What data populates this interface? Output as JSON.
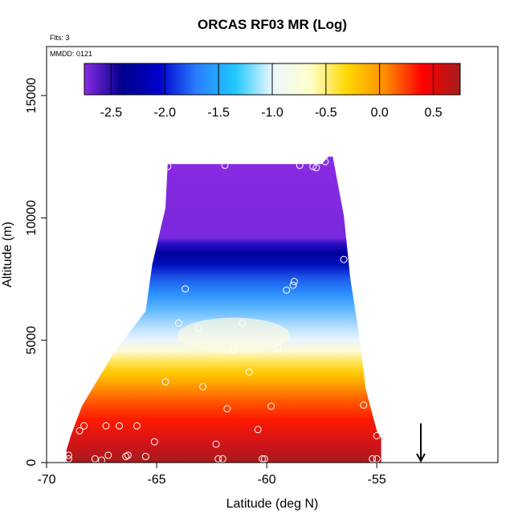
{
  "chart_data": {
    "type": "heatmap",
    "title": "ORCAS RF03 MR (Log)",
    "annotations": {
      "flights": "Flts: 3",
      "date": "MMDD: 0121"
    },
    "xlabel": "Latitude (deg N)",
    "ylabel": "Altitude (m)",
    "xlim": [
      -70,
      -49.5
    ],
    "ylim": [
      0,
      17000
    ],
    "xticks": [
      -70,
      -65,
      -60,
      -55
    ],
    "xtick_labels": [
      "-70",
      "-65",
      "-60",
      "-55"
    ],
    "yticks": [
      0,
      5000,
      10000,
      15000
    ],
    "ytick_labels": [
      "0",
      "5000",
      "10000",
      "15000"
    ],
    "colorbar": {
      "range": [
        -2.75,
        0.75
      ],
      "ticks": [
        -2.5,
        -2.0,
        -1.5,
        -1.0,
        -0.5,
        0.0,
        0.5
      ],
      "tick_labels": [
        "-2.5",
        "-2.0",
        "-1.5",
        "-1.0",
        "-0.5",
        "0.0",
        "0.5"
      ],
      "colors": [
        "#8a2be2",
        "#00008b",
        "#0000cd",
        "#2a7fff",
        "#1ec8ff",
        "#eaf6ff",
        "#ffffcc",
        "#ffd700",
        "#ff8c00",
        "#ff0000",
        "#a51c1c"
      ]
    },
    "envelope": [
      [
        -69.1,
        500
      ],
      [
        -68.9,
        1100
      ],
      [
        -68.4,
        2300
      ],
      [
        -67.0,
        4400
      ],
      [
        -65.5,
        6200
      ],
      [
        -65.2,
        8100
      ],
      [
        -64.6,
        10400
      ],
      [
        -64.5,
        12200
      ],
      [
        -57.5,
        12200
      ],
      [
        -57.2,
        12500
      ],
      [
        -57.0,
        12500
      ],
      [
        -56.5,
        10100
      ],
      [
        -56.2,
        7500
      ],
      [
        -55.8,
        5200
      ],
      [
        -55.5,
        3000
      ],
      [
        -55.0,
        1300
      ],
      [
        -54.8,
        1000
      ],
      [
        -54.8,
        0
      ],
      [
        -69.1,
        0
      ]
    ],
    "sample_points": [
      [
        -64.5,
        12100
      ],
      [
        -61.9,
        12150
      ],
      [
        -58.5,
        12150
      ],
      [
        -57.9,
        12100
      ],
      [
        -57.75,
        12050
      ],
      [
        -57.35,
        12300
      ],
      [
        -56.5,
        8300
      ],
      [
        -63.7,
        7100
      ],
      [
        -59.1,
        7050
      ],
      [
        -58.8,
        7250
      ],
      [
        -58.75,
        7400
      ],
      [
        -64.0,
        5700
      ],
      [
        -63.1,
        5500
      ],
      [
        -61.1,
        5700
      ],
      [
        -61.5,
        4600
      ],
      [
        -59.5,
        4700
      ],
      [
        -60.8,
        3700
      ],
      [
        -64.6,
        3300
      ],
      [
        -62.9,
        3100
      ],
      [
        -61.8,
        2200
      ],
      [
        -59.8,
        2300
      ],
      [
        -55.6,
        2350
      ],
      [
        -68.3,
        1500
      ],
      [
        -67.3,
        1500
      ],
      [
        -66.7,
        1500
      ],
      [
        -65.9,
        1500
      ],
      [
        -68.5,
        1300
      ],
      [
        -65.1,
        850
      ],
      [
        -62.3,
        750
      ],
      [
        -60.4,
        1350
      ],
      [
        -55.0,
        1100
      ],
      [
        -69.0,
        300
      ],
      [
        -69.0,
        150
      ],
      [
        -67.8,
        150
      ],
      [
        -67.5,
        100
      ],
      [
        -67.2,
        300
      ],
      [
        -66.4,
        250
      ],
      [
        -66.3,
        300
      ],
      [
        -65.5,
        250
      ],
      [
        -62.2,
        150
      ],
      [
        -62.0,
        150
      ],
      [
        -60.2,
        150
      ],
      [
        -60.1,
        150
      ],
      [
        -55.2,
        150
      ],
      [
        -55.0,
        150
      ]
    ],
    "arrow": {
      "x": -53.0,
      "y_top": 1600,
      "y_bottom": 0
    }
  }
}
